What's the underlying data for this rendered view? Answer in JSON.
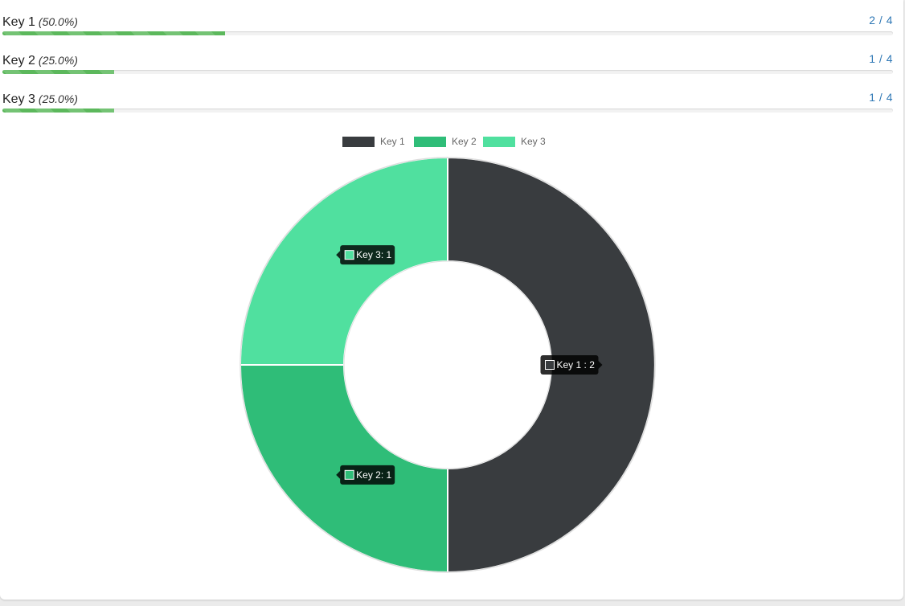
{
  "stats": [
    {
      "label": "Key 1",
      "percent_text": "(50.0%)",
      "count_text": "2 / 4",
      "fraction": 0.5
    },
    {
      "label": "Key 2",
      "percent_text": "(25.0%)",
      "count_text": "1 / 4",
      "fraction": 0.25
    },
    {
      "label": "Key 3",
      "percent_text": "(25.0%)",
      "count_text": "1 / 4",
      "fraction": 0.25
    }
  ],
  "colors": {
    "bar_fill": "#5cb85c",
    "count_link": "#2f78b5",
    "tooltip_bg": "#000000"
  },
  "chart_data": {
    "type": "pie",
    "variant": "doughnut",
    "labels": [
      "Key 1",
      "Key 2",
      "Key 3"
    ],
    "values": [
      2,
      1,
      1
    ],
    "colors": [
      "#393c3f",
      "#2fbd78",
      "#50e09f"
    ],
    "legend_position": "top",
    "tooltips": [
      "Key 1 : 2",
      "Key 2: 1",
      "Key 3: 1"
    ]
  }
}
